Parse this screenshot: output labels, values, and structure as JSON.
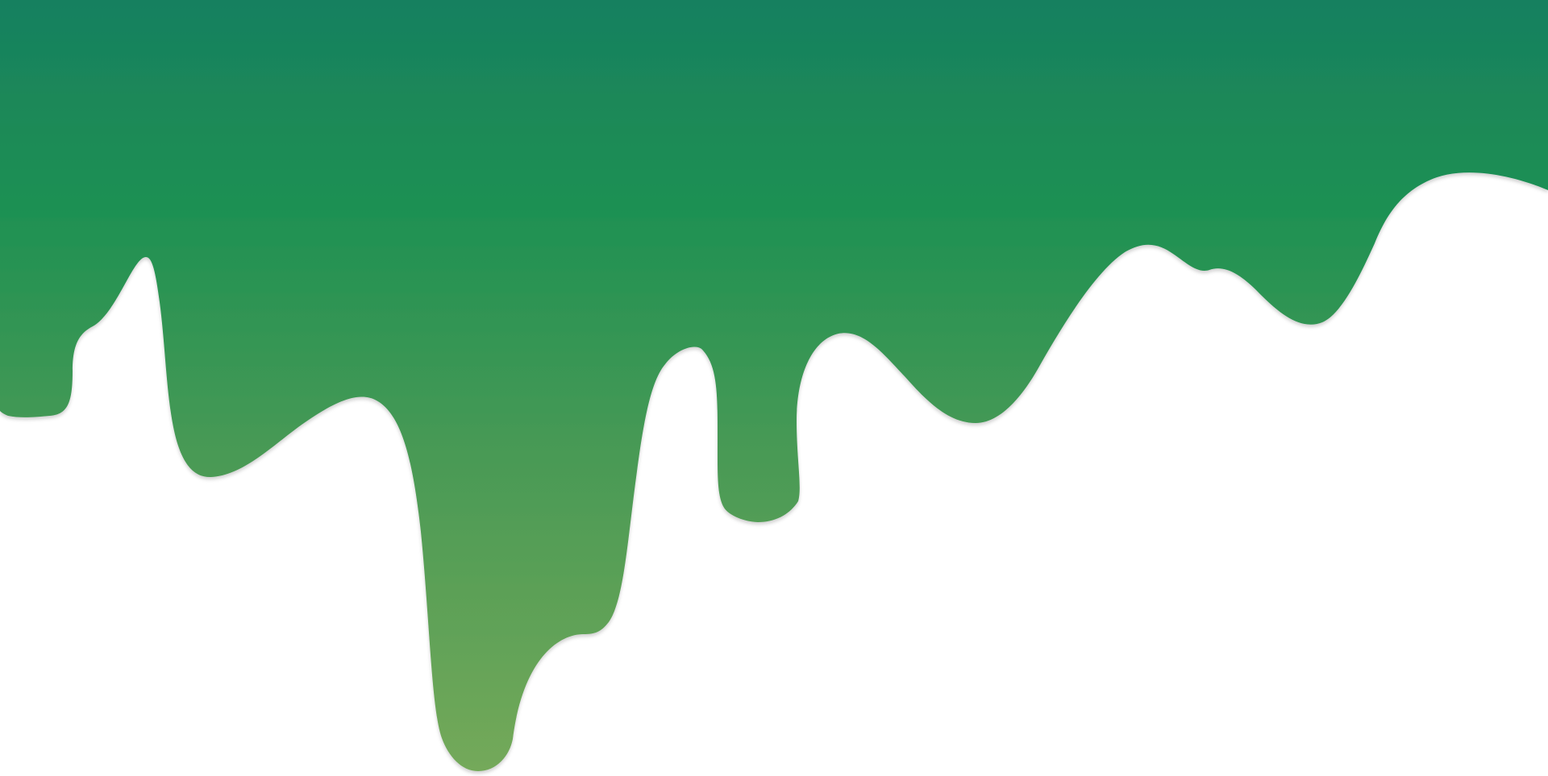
{
  "graphic": {
    "name": "green-paint-drip",
    "colors": {
      "top": "#17805f",
      "middle": "#1f9152",
      "lower": "#4a9a55",
      "bottom": "#74a95a",
      "background": "#ffffff",
      "edge_shadow": "#d9d9d9"
    }
  }
}
